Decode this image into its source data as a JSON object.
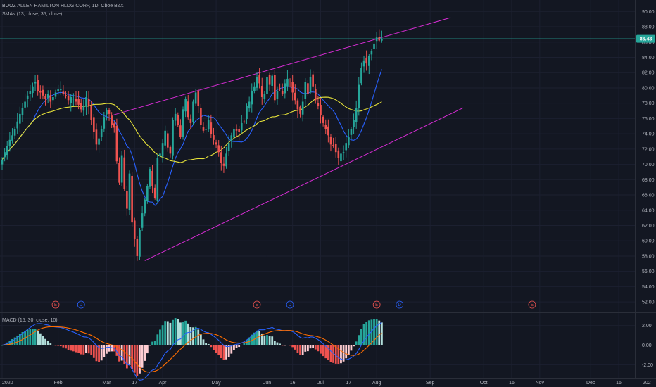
{
  "header": {
    "title": "BOOZ ALLEN HAMILTON HLDG CORP, 1D, Cboe BZX",
    "sma_legend": "SMAs (13, close, 35, close)",
    "macd_legend": "MACD (15, 30, close, 10)"
  },
  "colors": {
    "background": "#131722",
    "up": "#26a69a",
    "down": "#ef5350",
    "sma_fast": "#2962ff",
    "sma_slow": "#e6e23a",
    "channel": "#d52cd2",
    "macd_line": "#2962ff",
    "signal_line": "#ff6d00",
    "price_tag": "#26a69a",
    "earnings": "#ef5350",
    "dividend": "#2962ff"
  },
  "chart_data": [
    {
      "type": "candlestick",
      "symbol": "BOOZ ALLEN HAMILTON HLDG CORP",
      "interval": "1D",
      "exchange": "Cboe BZX",
      "last_price": "86.43",
      "y_ticks": [
        "52.00",
        "54.00",
        "56.00",
        "58.00",
        "60.00",
        "62.00",
        "64.00",
        "66.00",
        "68.00",
        "70.00",
        "72.00",
        "74.00",
        "76.00",
        "78.00",
        "80.00",
        "82.00",
        "84.00",
        "86.00",
        "88.00",
        "90.00"
      ],
      "ylim": [
        51,
        91.5
      ],
      "x_ticks": [
        {
          "label": "2020",
          "t": 0
        },
        {
          "label": "Feb",
          "t": 22
        },
        {
          "label": "Mar",
          "t": 41
        },
        {
          "label": "17",
          "t": 52
        },
        {
          "label": "Apr",
          "t": 63
        },
        {
          "label": "May",
          "t": 84
        },
        {
          "label": "Jun",
          "t": 104
        },
        {
          "label": "16",
          "t": 114
        },
        {
          "label": "Jul",
          "t": 125
        },
        {
          "label": "17",
          "t": 136
        },
        {
          "label": "Aug",
          "t": 147
        },
        {
          "label": "Sep",
          "t": 168
        },
        {
          "label": "Oct",
          "t": 189
        },
        {
          "label": "16",
          "t": 200
        },
        {
          "label": "Nov",
          "t": 211
        },
        {
          "label": "Dec",
          "t": 231
        },
        {
          "label": "16",
          "t": 242
        },
        {
          "label": "202",
          "t": 253
        }
      ],
      "closes": [
        70.6,
        71.6,
        72.4,
        73.2,
        73.8,
        74.6,
        75.6,
        76.6,
        77.4,
        78.2,
        79,
        79.6,
        80.2,
        80.8,
        79.6,
        79.4,
        79,
        78.6,
        79.2,
        78.2,
        78.8,
        79.4,
        79.8,
        79.8,
        79.2,
        79,
        78.4,
        78.8,
        78.6,
        78.2,
        77.8,
        77.2,
        77.6,
        78.8,
        77.6,
        75.8,
        74.2,
        72.6,
        73.4,
        74.6,
        76.2,
        77.1,
        76.6,
        75.2,
        74.8,
        70.4,
        67.6,
        71.2,
        66.8,
        64.2,
        68.8,
        62.4,
        60.2,
        58,
        61.4,
        63.6,
        65.4,
        67.2,
        69.4,
        67.2,
        65.6,
        70.8,
        71.4,
        72.8,
        74.4,
        72.2,
        71.4,
        75.8,
        76.6,
        75.2,
        73.6,
        77.2,
        78.6,
        76.2,
        75.4,
        78.2,
        79.4,
        77.6,
        75.2,
        74.4,
        74.6,
        75.8,
        74,
        73.2,
        72.6,
        71.6,
        70.2,
        69.8,
        71.4,
        72.8,
        73.8,
        74.6,
        74.4,
        74.2,
        75.4,
        75.6,
        77.6,
        78.2,
        79.6,
        80.2,
        81.4,
        80.6,
        78.8,
        79.2,
        81.4,
        80.4,
        81.6,
        78.4,
        79.6,
        79.8,
        79.2,
        80.6,
        81.2,
        80.8,
        79.4,
        78.4,
        77.2,
        76.6,
        78.2,
        80.8,
        79.2,
        81.4,
        80.2,
        78.4,
        77.6,
        76.4,
        75.4,
        74.6,
        73.8,
        72.6,
        72.4,
        71.6,
        70.8,
        71.4,
        71.6,
        72.8,
        73.6,
        74.6,
        75.8,
        77.4,
        80.4,
        82.6,
        83.6,
        83.2,
        84.2,
        84.8,
        85.8,
        86.6,
        86.2,
        86.43
      ],
      "sma_13_endpoint": 83.2,
      "sma_35_endpoint": 77.8,
      "channel": {
        "upper": [
          {
            "t": 43,
            "price": 76.4
          },
          {
            "t": 176,
            "price": 89.2
          }
        ],
        "lower": [
          {
            "t": 56,
            "price": 57.4
          },
          {
            "t": 181,
            "price": 77.4
          }
        ]
      },
      "events": [
        {
          "t": 21,
          "label": "E",
          "kind": "earnings"
        },
        {
          "t": 31,
          "label": "D",
          "kind": "dividend"
        },
        {
          "t": 100,
          "label": "E",
          "kind": "earnings"
        },
        {
          "t": 113,
          "label": "D",
          "kind": "dividend"
        },
        {
          "t": 147,
          "label": "E",
          "kind": "earnings"
        },
        {
          "t": 156,
          "label": "D",
          "kind": "dividend"
        },
        {
          "t": 208,
          "label": "E",
          "kind": "earnings"
        }
      ]
    },
    {
      "type": "bar",
      "name": "MACD (15, 30, close, 10)",
      "y_ticks": [
        "2.00",
        "0.00",
        "-2.00"
      ],
      "ylim": [
        -3.2,
        3.2
      ]
    }
  ]
}
